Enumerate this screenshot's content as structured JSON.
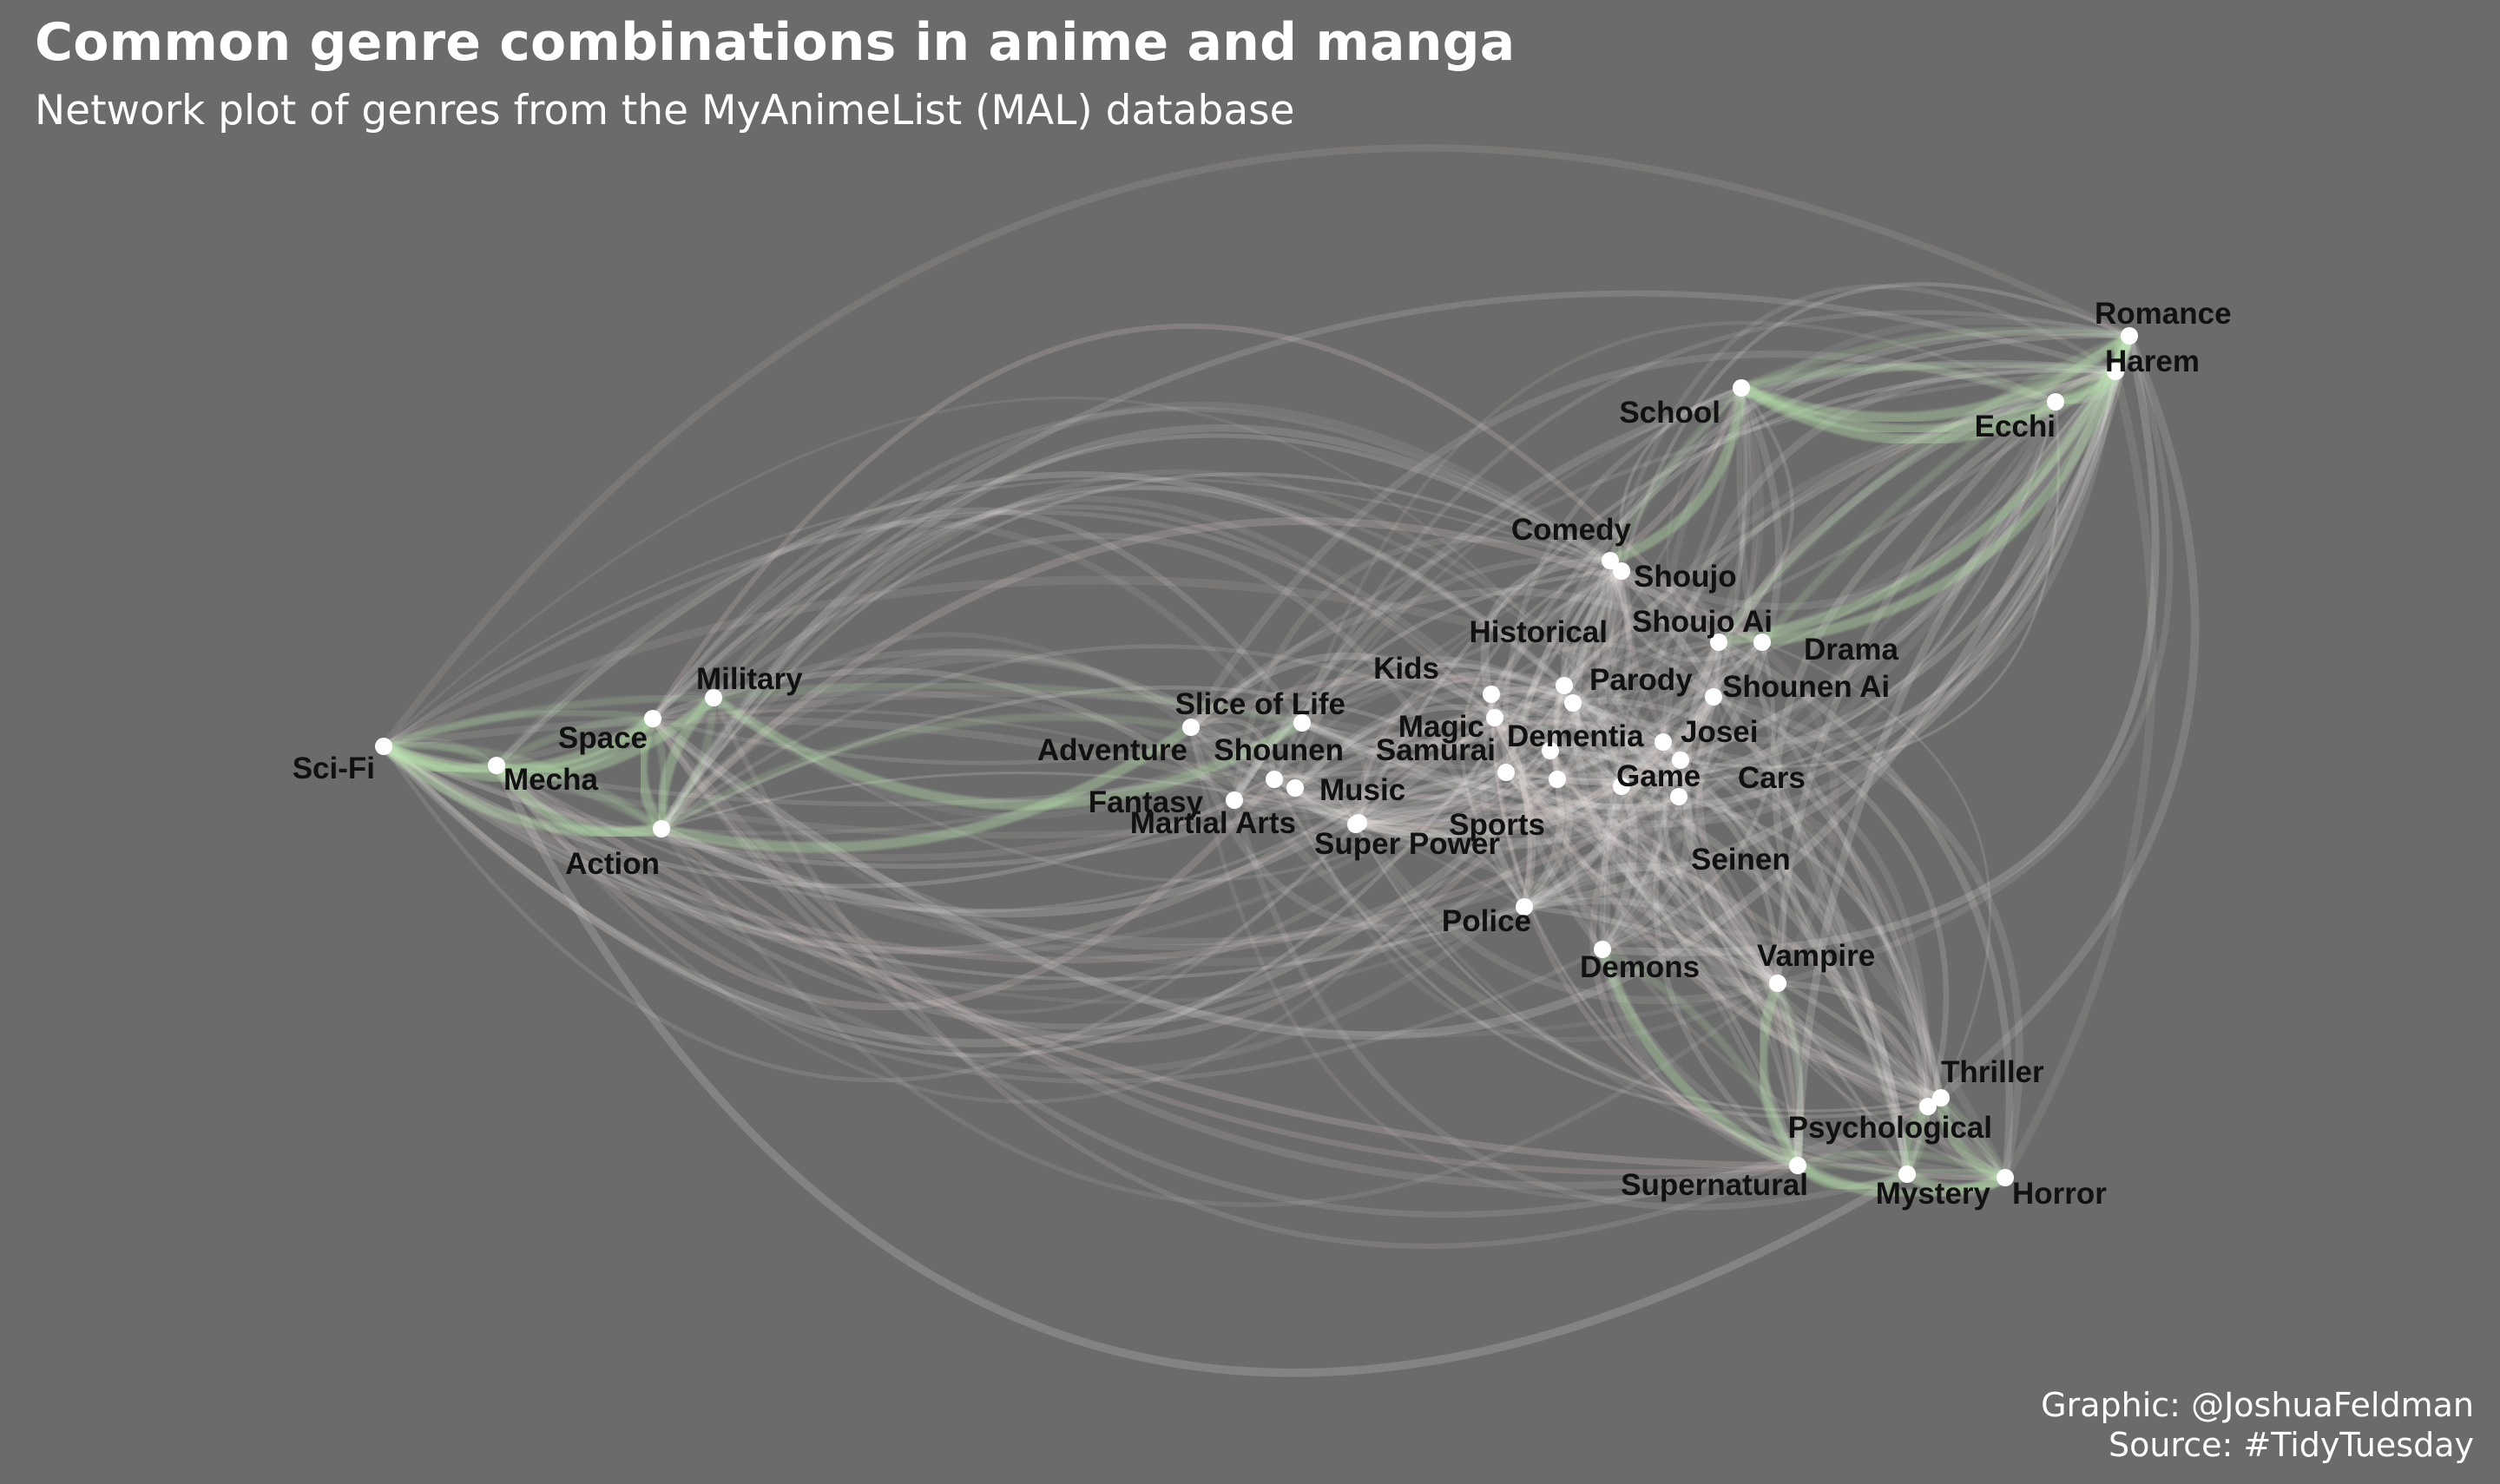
{
  "title": "Common genre combinations in anime and manga",
  "subtitle": "Network plot of genres from the MyAnimeList (MAL) database",
  "caption": {
    "line1": "Graphic: @JoshuaFeldman",
    "line2": "Source: #TidyTuesday"
  },
  "colors": {
    "background": "#6b6b6b",
    "edge": "#f4f1ef",
    "edge_tint": "#f3dcdc",
    "strong_edge": "#b9e6ad",
    "node": "#ffffff",
    "label": "#111111"
  },
  "nodes": [
    {
      "id": "Sci-Fi",
      "label": "Sci-Fi"
    },
    {
      "id": "Mecha",
      "label": "Mecha"
    },
    {
      "id": "Space",
      "label": "Space"
    },
    {
      "id": "Military",
      "label": "Military"
    },
    {
      "id": "Action",
      "label": "Action"
    },
    {
      "id": "Slice of Life",
      "label": "Slice of Life"
    },
    {
      "id": "Adventure",
      "label": "Adventure"
    },
    {
      "id": "Shounen",
      "label": "Shounen"
    },
    {
      "id": "Fantasy",
      "label": "Fantasy"
    },
    {
      "id": "Music",
      "label": "Music"
    },
    {
      "id": "Martial Arts",
      "label": "Martial Arts"
    },
    {
      "id": "Super Power",
      "label": "Super Power"
    },
    {
      "id": "Kids",
      "label": "Kids"
    },
    {
      "id": "Magic",
      "label": "Magic"
    },
    {
      "id": "Samurai",
      "label": "Samurai"
    },
    {
      "id": "Historical",
      "label": "Historical"
    },
    {
      "id": "Dementia",
      "label": "Dementia"
    },
    {
      "id": "Sports",
      "label": "Sports"
    },
    {
      "id": "Parody",
      "label": "Parody"
    },
    {
      "id": "Game",
      "label": "Game"
    },
    {
      "id": "Josei",
      "label": "Josei"
    },
    {
      "id": "Cars",
      "label": "Cars"
    },
    {
      "id": "Seinen",
      "label": "Seinen"
    },
    {
      "id": "Shounen Ai",
      "label": "Shounen Ai"
    },
    {
      "id": "Drama",
      "label": "Drama"
    },
    {
      "id": "Shoujo Ai",
      "label": "Shoujo Ai"
    },
    {
      "id": "Shoujo",
      "label": "Shoujo"
    },
    {
      "id": "Comedy",
      "label": "Comedy"
    },
    {
      "id": "School",
      "label": "School"
    },
    {
      "id": "Ecchi",
      "label": "Ecchi"
    },
    {
      "id": "Romance",
      "label": "Romance"
    },
    {
      "id": "Harem",
      "label": "Harem"
    },
    {
      "id": "Police",
      "label": "Police"
    },
    {
      "id": "Demons",
      "label": "Demons"
    },
    {
      "id": "Vampire",
      "label": "Vampire"
    },
    {
      "id": "Thriller",
      "label": "Thriller"
    },
    {
      "id": "Psychological",
      "label": "Psychological"
    },
    {
      "id": "Supernatural",
      "label": "Supernatural"
    },
    {
      "id": "Mystery",
      "label": "Mystery"
    },
    {
      "id": "Horror",
      "label": "Horror"
    }
  ],
  "strong_edges": [
    [
      "Sci-Fi",
      "Mecha"
    ],
    [
      "Sci-Fi",
      "Space"
    ],
    [
      "Sci-Fi",
      "Military"
    ],
    [
      "Sci-Fi",
      "Action"
    ],
    [
      "Mecha",
      "Space"
    ],
    [
      "Mecha",
      "Action"
    ],
    [
      "Military",
      "Action"
    ],
    [
      "Space",
      "Action"
    ],
    [
      "Military",
      "Slice of Life"
    ],
    [
      "Action",
      "Adventure"
    ],
    [
      "School",
      "Romance"
    ],
    [
      "School",
      "Harem"
    ],
    [
      "Ecchi",
      "Harem"
    ],
    [
      "Romance",
      "Harem"
    ],
    [
      "Comedy",
      "School"
    ],
    [
      "School",
      "Ecchi"
    ],
    [
      "Shoujo Ai",
      "Romance"
    ],
    [
      "Drama",
      "Romance"
    ],
    [
      "Demons",
      "Supernatural"
    ],
    [
      "Vampire",
      "Supernatural"
    ],
    [
      "Supernatural",
      "Mystery"
    ],
    [
      "Psychological",
      "Thriller"
    ],
    [
      "Mystery",
      "Horror"
    ],
    [
      "Thriller",
      "Horror"
    ],
    [
      "Supernatural",
      "Horror"
    ],
    [
      "Psychological",
      "Mystery"
    ]
  ]
}
